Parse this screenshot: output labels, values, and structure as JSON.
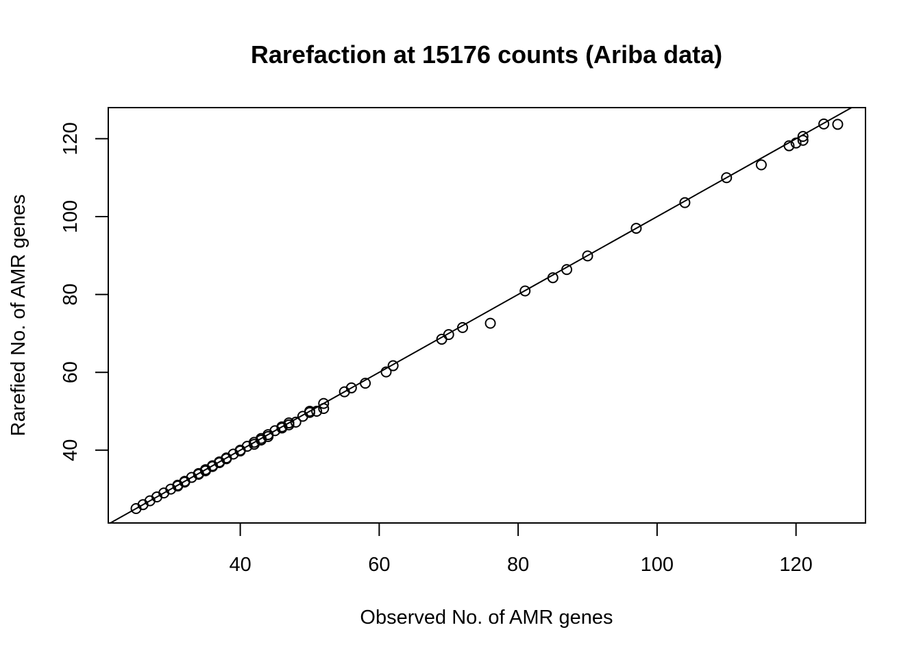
{
  "chart_data": {
    "type": "scatter",
    "title": "Rarefaction at 15176 counts (Ariba data)",
    "xlabel": "Observed No. of AMR genes",
    "ylabel": "Rarefied No. of AMR genes",
    "xlim": [
      21,
      130
    ],
    "ylim": [
      21.3,
      128.0
    ],
    "xticks": [
      40,
      60,
      80,
      100,
      120
    ],
    "yticks": [
      40,
      60,
      80,
      100,
      120
    ],
    "xtick_labels": [
      "40",
      "60",
      "80",
      "100",
      "120"
    ],
    "ytick_labels": [
      "40",
      "60",
      "80",
      "100",
      "120"
    ],
    "grid": false,
    "legend": "none",
    "reference_line": {
      "slope": 1,
      "intercept": 0
    },
    "series": [
      {
        "marker": "open-circle",
        "points": [
          {
            "x": 25,
            "y": 25
          },
          {
            "x": 26,
            "y": 26
          },
          {
            "x": 27,
            "y": 27
          },
          {
            "x": 28,
            "y": 28
          },
          {
            "x": 29,
            "y": 29
          },
          {
            "x": 30,
            "y": 30
          },
          {
            "x": 31,
            "y": 31
          },
          {
            "x": 31,
            "y": 30.8
          },
          {
            "x": 32,
            "y": 32
          },
          {
            "x": 32,
            "y": 31.8
          },
          {
            "x": 33,
            "y": 33
          },
          {
            "x": 34,
            "y": 34
          },
          {
            "x": 34,
            "y": 33.8
          },
          {
            "x": 35,
            "y": 35
          },
          {
            "x": 35,
            "y": 34.7
          },
          {
            "x": 36,
            "y": 36
          },
          {
            "x": 36,
            "y": 35.8
          },
          {
            "x": 37,
            "y": 37
          },
          {
            "x": 37,
            "y": 36.8
          },
          {
            "x": 38,
            "y": 38
          },
          {
            "x": 38,
            "y": 37.8
          },
          {
            "x": 39,
            "y": 39
          },
          {
            "x": 40,
            "y": 40
          },
          {
            "x": 40,
            "y": 39.8
          },
          {
            "x": 41,
            "y": 41
          },
          {
            "x": 42,
            "y": 42
          },
          {
            "x": 42,
            "y": 41.5
          },
          {
            "x": 43,
            "y": 43
          },
          {
            "x": 43,
            "y": 42.6
          },
          {
            "x": 44,
            "y": 44
          },
          {
            "x": 44,
            "y": 43.5
          },
          {
            "x": 45,
            "y": 45
          },
          {
            "x": 46,
            "y": 46
          },
          {
            "x": 46,
            "y": 45.7
          },
          {
            "x": 47,
            "y": 47
          },
          {
            "x": 47,
            "y": 46.5
          },
          {
            "x": 48,
            "y": 47.2
          },
          {
            "x": 49,
            "y": 48.7
          },
          {
            "x": 50,
            "y": 50
          },
          {
            "x": 50,
            "y": 49.7
          },
          {
            "x": 51,
            "y": 50
          },
          {
            "x": 52,
            "y": 52
          },
          {
            "x": 52,
            "y": 50.7
          },
          {
            "x": 55,
            "y": 55
          },
          {
            "x": 56,
            "y": 56
          },
          {
            "x": 58,
            "y": 57.2
          },
          {
            "x": 61,
            "y": 60.1
          },
          {
            "x": 62,
            "y": 61.7
          },
          {
            "x": 69,
            "y": 68.5
          },
          {
            "x": 70,
            "y": 69.7
          },
          {
            "x": 72,
            "y": 71.5
          },
          {
            "x": 76,
            "y": 72.6
          },
          {
            "x": 81,
            "y": 80.9
          },
          {
            "x": 85,
            "y": 84.3
          },
          {
            "x": 87,
            "y": 86.4
          },
          {
            "x": 90,
            "y": 89.9
          },
          {
            "x": 97,
            "y": 97
          },
          {
            "x": 104,
            "y": 103.6
          },
          {
            "x": 110,
            "y": 110
          },
          {
            "x": 115,
            "y": 113.3
          },
          {
            "x": 119,
            "y": 118.2
          },
          {
            "x": 120,
            "y": 118.9
          },
          {
            "x": 121,
            "y": 119.6
          },
          {
            "x": 121,
            "y": 120.6
          },
          {
            "x": 124,
            "y": 123.8
          },
          {
            "x": 126,
            "y": 123.7
          }
        ]
      }
    ]
  }
}
